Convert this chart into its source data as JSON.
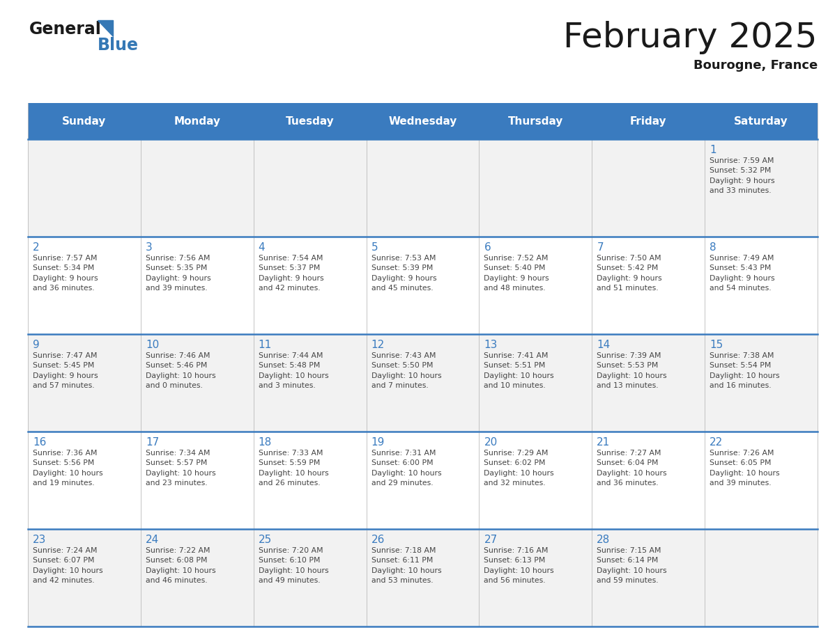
{
  "title": "February 2025",
  "subtitle": "Bourogne, France",
  "header_bg_color": "#3A7BBF",
  "header_text_color": "#FFFFFF",
  "day_names": [
    "Sunday",
    "Monday",
    "Tuesday",
    "Wednesday",
    "Thursday",
    "Friday",
    "Saturday"
  ],
  "row_bg_even": "#F2F2F2",
  "row_bg_odd": "#FFFFFF",
  "border_color": "#3A7BBF",
  "date_text_color": "#3A7BBF",
  "info_text_color": "#444444",
  "logo_general_color": "#1A1A1A",
  "logo_blue_color": "#3578B5",
  "calendar_data": [
    [
      {
        "day": 0,
        "info": ""
      },
      {
        "day": 0,
        "info": ""
      },
      {
        "day": 0,
        "info": ""
      },
      {
        "day": 0,
        "info": ""
      },
      {
        "day": 0,
        "info": ""
      },
      {
        "day": 0,
        "info": ""
      },
      {
        "day": 1,
        "info": "Sunrise: 7:59 AM\nSunset: 5:32 PM\nDaylight: 9 hours\nand 33 minutes."
      }
    ],
    [
      {
        "day": 2,
        "info": "Sunrise: 7:57 AM\nSunset: 5:34 PM\nDaylight: 9 hours\nand 36 minutes."
      },
      {
        "day": 3,
        "info": "Sunrise: 7:56 AM\nSunset: 5:35 PM\nDaylight: 9 hours\nand 39 minutes."
      },
      {
        "day": 4,
        "info": "Sunrise: 7:54 AM\nSunset: 5:37 PM\nDaylight: 9 hours\nand 42 minutes."
      },
      {
        "day": 5,
        "info": "Sunrise: 7:53 AM\nSunset: 5:39 PM\nDaylight: 9 hours\nand 45 minutes."
      },
      {
        "day": 6,
        "info": "Sunrise: 7:52 AM\nSunset: 5:40 PM\nDaylight: 9 hours\nand 48 minutes."
      },
      {
        "day": 7,
        "info": "Sunrise: 7:50 AM\nSunset: 5:42 PM\nDaylight: 9 hours\nand 51 minutes."
      },
      {
        "day": 8,
        "info": "Sunrise: 7:49 AM\nSunset: 5:43 PM\nDaylight: 9 hours\nand 54 minutes."
      }
    ],
    [
      {
        "day": 9,
        "info": "Sunrise: 7:47 AM\nSunset: 5:45 PM\nDaylight: 9 hours\nand 57 minutes."
      },
      {
        "day": 10,
        "info": "Sunrise: 7:46 AM\nSunset: 5:46 PM\nDaylight: 10 hours\nand 0 minutes."
      },
      {
        "day": 11,
        "info": "Sunrise: 7:44 AM\nSunset: 5:48 PM\nDaylight: 10 hours\nand 3 minutes."
      },
      {
        "day": 12,
        "info": "Sunrise: 7:43 AM\nSunset: 5:50 PM\nDaylight: 10 hours\nand 7 minutes."
      },
      {
        "day": 13,
        "info": "Sunrise: 7:41 AM\nSunset: 5:51 PM\nDaylight: 10 hours\nand 10 minutes."
      },
      {
        "day": 14,
        "info": "Sunrise: 7:39 AM\nSunset: 5:53 PM\nDaylight: 10 hours\nand 13 minutes."
      },
      {
        "day": 15,
        "info": "Sunrise: 7:38 AM\nSunset: 5:54 PM\nDaylight: 10 hours\nand 16 minutes."
      }
    ],
    [
      {
        "day": 16,
        "info": "Sunrise: 7:36 AM\nSunset: 5:56 PM\nDaylight: 10 hours\nand 19 minutes."
      },
      {
        "day": 17,
        "info": "Sunrise: 7:34 AM\nSunset: 5:57 PM\nDaylight: 10 hours\nand 23 minutes."
      },
      {
        "day": 18,
        "info": "Sunrise: 7:33 AM\nSunset: 5:59 PM\nDaylight: 10 hours\nand 26 minutes."
      },
      {
        "day": 19,
        "info": "Sunrise: 7:31 AM\nSunset: 6:00 PM\nDaylight: 10 hours\nand 29 minutes."
      },
      {
        "day": 20,
        "info": "Sunrise: 7:29 AM\nSunset: 6:02 PM\nDaylight: 10 hours\nand 32 minutes."
      },
      {
        "day": 21,
        "info": "Sunrise: 7:27 AM\nSunset: 6:04 PM\nDaylight: 10 hours\nand 36 minutes."
      },
      {
        "day": 22,
        "info": "Sunrise: 7:26 AM\nSunset: 6:05 PM\nDaylight: 10 hours\nand 39 minutes."
      }
    ],
    [
      {
        "day": 23,
        "info": "Sunrise: 7:24 AM\nSunset: 6:07 PM\nDaylight: 10 hours\nand 42 minutes."
      },
      {
        "day": 24,
        "info": "Sunrise: 7:22 AM\nSunset: 6:08 PM\nDaylight: 10 hours\nand 46 minutes."
      },
      {
        "day": 25,
        "info": "Sunrise: 7:20 AM\nSunset: 6:10 PM\nDaylight: 10 hours\nand 49 minutes."
      },
      {
        "day": 26,
        "info": "Sunrise: 7:18 AM\nSunset: 6:11 PM\nDaylight: 10 hours\nand 53 minutes."
      },
      {
        "day": 27,
        "info": "Sunrise: 7:16 AM\nSunset: 6:13 PM\nDaylight: 10 hours\nand 56 minutes."
      },
      {
        "day": 28,
        "info": "Sunrise: 7:15 AM\nSunset: 6:14 PM\nDaylight: 10 hours\nand 59 minutes."
      },
      {
        "day": 0,
        "info": ""
      }
    ]
  ],
  "fig_width": 11.88,
  "fig_height": 9.18,
  "dpi": 100
}
